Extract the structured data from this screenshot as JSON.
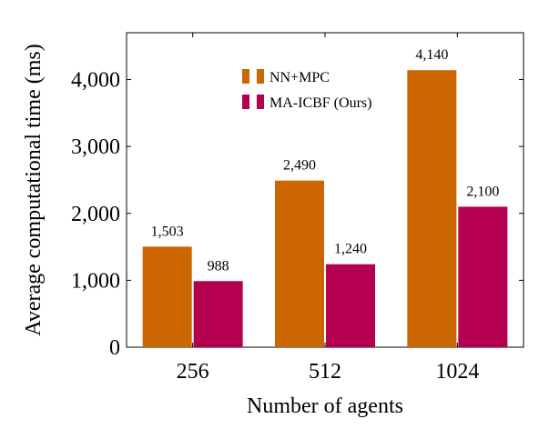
{
  "chart_data": {
    "type": "bar",
    "categories": [
      "256",
      "512",
      "1024"
    ],
    "series": [
      {
        "name": "NN+MPC",
        "values": [
          1503,
          2490,
          4140
        ],
        "labels": [
          "1,503",
          "2,490",
          "4,140"
        ],
        "color": "#CC6600"
      },
      {
        "name": "MA-ICBF (Ours)",
        "values": [
          988,
          1240,
          2100
        ],
        "labels": [
          "988",
          "1,240",
          "2,100"
        ],
        "color": "#B5004F"
      }
    ],
    "xlabel": "Number of agents",
    "ylabel": "Average computational time (ms)",
    "ylim": [
      0,
      4700
    ],
    "yticks": [
      0,
      1000,
      2000,
      3000,
      4000
    ],
    "ytick_labels": [
      "0",
      "1,000",
      "2,000",
      "3,000",
      "4,000"
    ],
    "grid": false,
    "legend_position": "top-center"
  }
}
